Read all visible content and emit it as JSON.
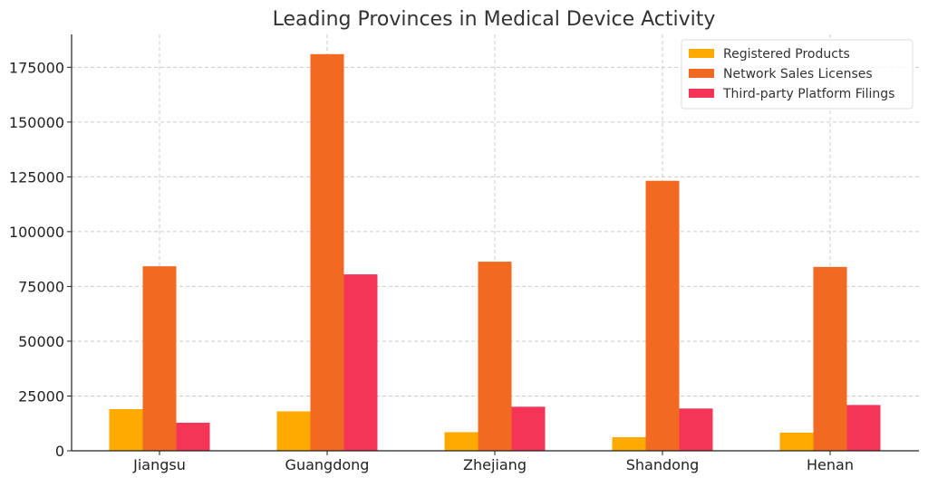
{
  "chart_data": {
    "type": "bar",
    "title": "Leading Provinces in Medical Device Activity",
    "xlabel": "",
    "ylabel": "",
    "categories": [
      "Jiangsu",
      "Guangdong",
      "Zhejiang",
      "Shandong",
      "Henan"
    ],
    "series": [
      {
        "name": "Registered Products",
        "color": "#FFAA00",
        "values": [
          19000,
          18000,
          8500,
          6200,
          8300
        ]
      },
      {
        "name": "Network Sales Licenses",
        "color": "#F26A22",
        "values": [
          84200,
          181000,
          86300,
          123200,
          83900
        ]
      },
      {
        "name": "Third-party Platform Filings",
        "color": "#F43558",
        "values": [
          12800,
          80500,
          20100,
          19300,
          20900
        ]
      }
    ],
    "ylim": [
      0,
      190000
    ],
    "yticks": [
      0,
      25000,
      50000,
      75000,
      100000,
      125000,
      150000,
      175000
    ],
    "grid": true,
    "legend_position": "top-right"
  }
}
